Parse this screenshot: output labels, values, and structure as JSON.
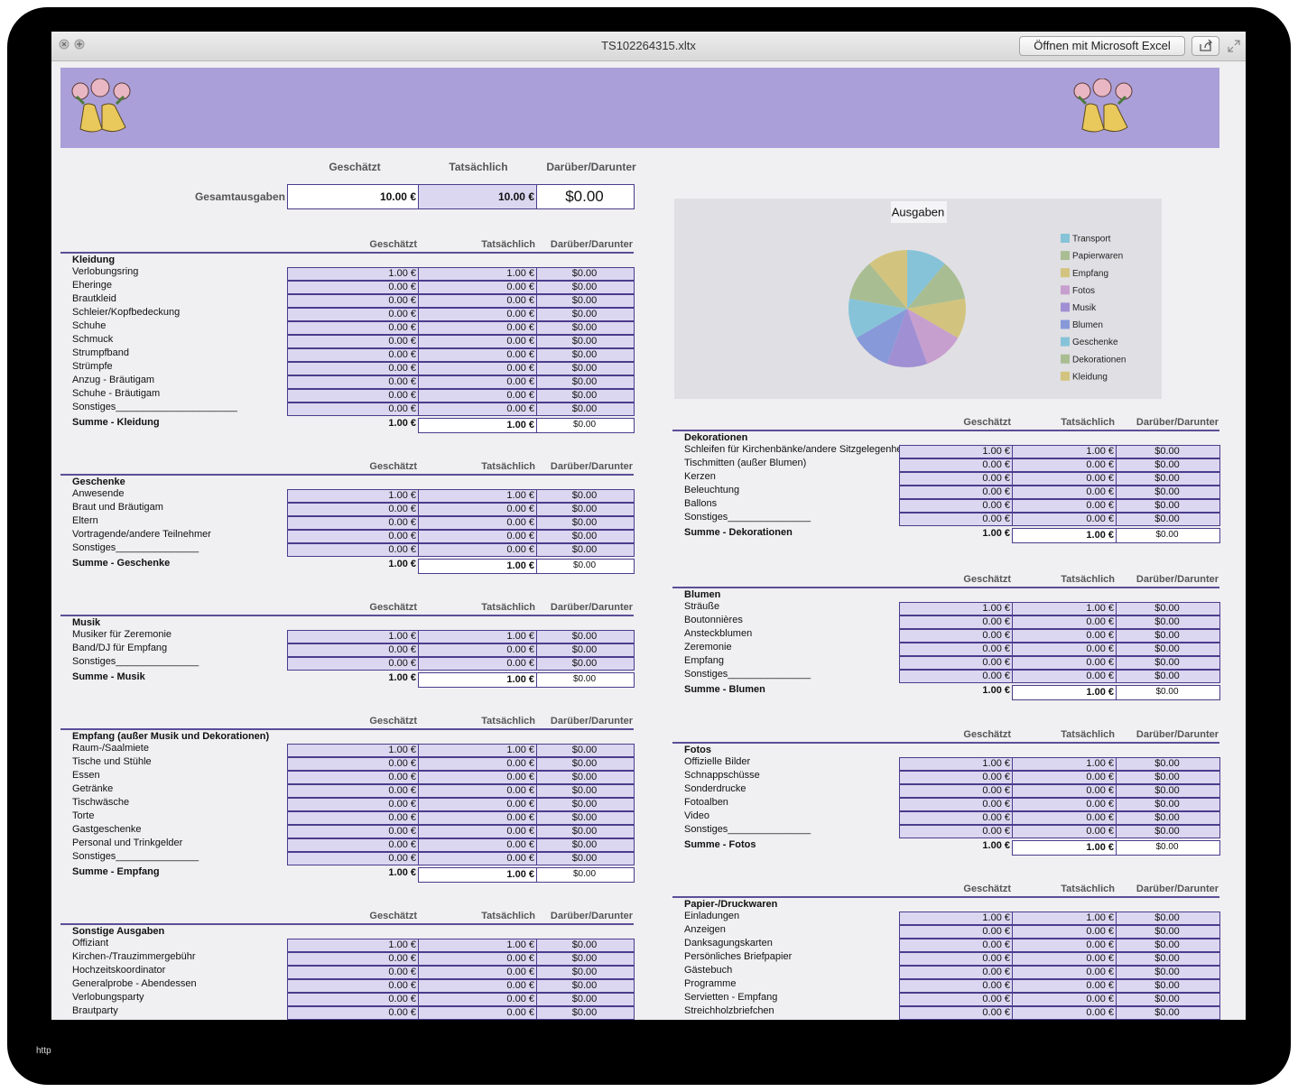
{
  "window": {
    "title": "TS102264315.xltx",
    "open_button": "Öffnen mit Microsoft Excel"
  },
  "columns": [
    "Geschätzt",
    "Tatsächlich",
    "Darüber/Darunter"
  ],
  "summary": {
    "label": "Gesamtausgaben",
    "values": [
      "10.00 €",
      "10.00 €",
      "$0.00"
    ]
  },
  "chart_data": {
    "type": "pie",
    "title": "Ausgaben",
    "categories": [
      "Transport",
      "Papierwaren",
      "Empfang",
      "Fotos",
      "Musik",
      "Blumen",
      "Geschenke",
      "Dekorationen",
      "Kleidung"
    ],
    "values": [
      1,
      1,
      1,
      1,
      1,
      1,
      1,
      1,
      1
    ],
    "colors": [
      "#86c3d8",
      "#a9bd92",
      "#d2c47e",
      "#c79fcf",
      "#a08fd3",
      "#8799d8",
      "#86c3d8",
      "#a9bd92",
      "#d2c47e"
    ]
  },
  "sections": [
    {
      "title": "Kleidung",
      "rows": [
        [
          "Verlobungsring",
          "1.00 €",
          "1.00 €",
          "$0.00"
        ],
        [
          "Eheringe",
          "0.00 €",
          "0.00 €",
          "$0.00"
        ],
        [
          "Brautkleid",
          "0.00 €",
          "0.00 €",
          "$0.00"
        ],
        [
          "Schleier/Kopfbedeckung",
          "0.00 €",
          "0.00 €",
          "$0.00"
        ],
        [
          "Schuhe",
          "0.00 €",
          "0.00 €",
          "$0.00"
        ],
        [
          "Schmuck",
          "0.00 €",
          "0.00 €",
          "$0.00"
        ],
        [
          "Strumpfband",
          "0.00 €",
          "0.00 €",
          "$0.00"
        ],
        [
          "Strümpfe",
          "0.00 €",
          "0.00 €",
          "$0.00"
        ],
        [
          "Anzug - Bräutigam",
          "0.00 €",
          "0.00 €",
          "$0.00"
        ],
        [
          "Schuhe - Bräutigam",
          "0.00 €",
          "0.00 €",
          "$0.00"
        ],
        [
          "Sonstiges______________________",
          "0.00 €",
          "0.00 €",
          "$0.00"
        ]
      ],
      "total": [
        "Summe - Kleidung",
        "1.00 €",
        "1.00 €",
        "$0.00"
      ]
    },
    {
      "title": "Geschenke",
      "rows": [
        [
          "Anwesende",
          "1.00 €",
          "1.00 €",
          "$0.00"
        ],
        [
          "Braut und Bräutigam",
          "0.00 €",
          "0.00 €",
          "$0.00"
        ],
        [
          "Eltern",
          "0.00 €",
          "0.00 €",
          "$0.00"
        ],
        [
          "Vortragende/andere Teilnehmer",
          "0.00 €",
          "0.00 €",
          "$0.00"
        ],
        [
          "Sonstiges_______________",
          "0.00 €",
          "0.00 €",
          "$0.00"
        ]
      ],
      "total": [
        "Summe - Geschenke",
        "1.00 €",
        "1.00 €",
        "$0.00"
      ]
    },
    {
      "title": "Musik",
      "rows": [
        [
          "Musiker für Zeremonie",
          "1.00 €",
          "1.00 €",
          "$0.00"
        ],
        [
          "Band/DJ für Empfang",
          "0.00 €",
          "0.00 €",
          "$0.00"
        ],
        [
          "Sonstiges_______________",
          "0.00 €",
          "0.00 €",
          "$0.00"
        ]
      ],
      "total": [
        "Summe - Musik",
        "1.00 €",
        "1.00 €",
        "$0.00"
      ]
    },
    {
      "title": "Empfang (außer Musik und Dekorationen)",
      "rows": [
        [
          "Raum-/Saalmiete",
          "1.00 €",
          "1.00 €",
          "$0.00"
        ],
        [
          "Tische und Stühle",
          "0.00 €",
          "0.00 €",
          "$0.00"
        ],
        [
          "Essen",
          "0.00 €",
          "0.00 €",
          "$0.00"
        ],
        [
          "Getränke",
          "0.00 €",
          "0.00 €",
          "$0.00"
        ],
        [
          "Tischwäsche",
          "0.00 €",
          "0.00 €",
          "$0.00"
        ],
        [
          "Torte",
          "0.00 €",
          "0.00 €",
          "$0.00"
        ],
        [
          "Gastgeschenke",
          "0.00 €",
          "0.00 €",
          "$0.00"
        ],
        [
          "Personal und Trinkgelder",
          "0.00 €",
          "0.00 €",
          "$0.00"
        ],
        [
          "Sonstiges_______________",
          "0.00 €",
          "0.00 €",
          "$0.00"
        ]
      ],
      "total": [
        "Summe - Empfang",
        "1.00 €",
        "1.00 €",
        "$0.00"
      ]
    },
    {
      "title": "Sonstige Ausgaben",
      "rows": [
        [
          "Offiziant",
          "1.00 €",
          "1.00 €",
          "$0.00"
        ],
        [
          "Kirchen-/Trauzimmergebühr",
          "0.00 €",
          "0.00 €",
          "$0.00"
        ],
        [
          "Hochzeitskoordinator",
          "0.00 €",
          "0.00 €",
          "$0.00"
        ],
        [
          "Generalprobe - Abendessen",
          "0.00 €",
          "0.00 €",
          "$0.00"
        ],
        [
          "Verlobungsparty",
          "0.00 €",
          "0.00 €",
          "$0.00"
        ],
        [
          "Brautparty",
          "0.00 €",
          "0.00 €",
          "$0.00"
        ]
      ]
    },
    {
      "title": "Dekorationen",
      "rows": [
        [
          "Schleifen für Kirchenbänke/andere Sitzgelegenheiten",
          "1.00 €",
          "1.00 €",
          "$0.00"
        ],
        [
          "Tischmitten (außer Blumen)",
          "0.00 €",
          "0.00 €",
          "$0.00"
        ],
        [
          "Kerzen",
          "0.00 €",
          "0.00 €",
          "$0.00"
        ],
        [
          "Beleuchtung",
          "0.00 €",
          "0.00 €",
          "$0.00"
        ],
        [
          "Ballons",
          "0.00 €",
          "0.00 €",
          "$0.00"
        ],
        [
          "Sonstiges_______________",
          "0.00 €",
          "0.00 €",
          "$0.00"
        ]
      ],
      "total": [
        "Summe - Dekorationen",
        "1.00 €",
        "1.00 €",
        "$0.00"
      ]
    },
    {
      "title": "Blumen",
      "rows": [
        [
          "Sträuße",
          "1.00 €",
          "1.00 €",
          "$0.00"
        ],
        [
          "Boutonnières",
          "0.00 €",
          "0.00 €",
          "$0.00"
        ],
        [
          "Ansteckblumen",
          "0.00 €",
          "0.00 €",
          "$0.00"
        ],
        [
          "Zeremonie",
          "0.00 €",
          "0.00 €",
          "$0.00"
        ],
        [
          "Empfang",
          "0.00 €",
          "0.00 €",
          "$0.00"
        ],
        [
          "Sonstiges_______________",
          "0.00 €",
          "0.00 €",
          "$0.00"
        ]
      ],
      "total": [
        "Summe - Blumen",
        "1.00 €",
        "1.00 €",
        "$0.00"
      ]
    },
    {
      "title": "Fotos",
      "rows": [
        [
          "Offizielle Bilder",
          "1.00 €",
          "1.00 €",
          "$0.00"
        ],
        [
          "Schnappschüsse",
          "0.00 €",
          "0.00 €",
          "$0.00"
        ],
        [
          "Sonderdrucke",
          "0.00 €",
          "0.00 €",
          "$0.00"
        ],
        [
          "Fotoalben",
          "0.00 €",
          "0.00 €",
          "$0.00"
        ],
        [
          "Video",
          "0.00 €",
          "0.00 €",
          "$0.00"
        ],
        [
          "Sonstiges_______________",
          "0.00 €",
          "0.00 €",
          "$0.00"
        ]
      ],
      "total": [
        "Summe - Fotos",
        "1.00 €",
        "1.00 €",
        "$0.00"
      ]
    },
    {
      "title": "Papier-/Druckwaren",
      "rows": [
        [
          "Einladungen",
          "1.00 €",
          "1.00 €",
          "$0.00"
        ],
        [
          "Anzeigen",
          "0.00 €",
          "0.00 €",
          "$0.00"
        ],
        [
          "Danksagungskarten",
          "0.00 €",
          "0.00 €",
          "$0.00"
        ],
        [
          "Persönliches Briefpapier",
          "0.00 €",
          "0.00 €",
          "$0.00"
        ],
        [
          "Gästebuch",
          "0.00 €",
          "0.00 €",
          "$0.00"
        ],
        [
          "Programme",
          "0.00 €",
          "0.00 €",
          "$0.00"
        ],
        [
          "Servietten - Empfang",
          "0.00 €",
          "0.00 €",
          "$0.00"
        ],
        [
          "Streichholzbriefchen",
          "0.00 €",
          "0.00 €",
          "$0.00"
        ]
      ]
    }
  ],
  "footer": "http"
}
